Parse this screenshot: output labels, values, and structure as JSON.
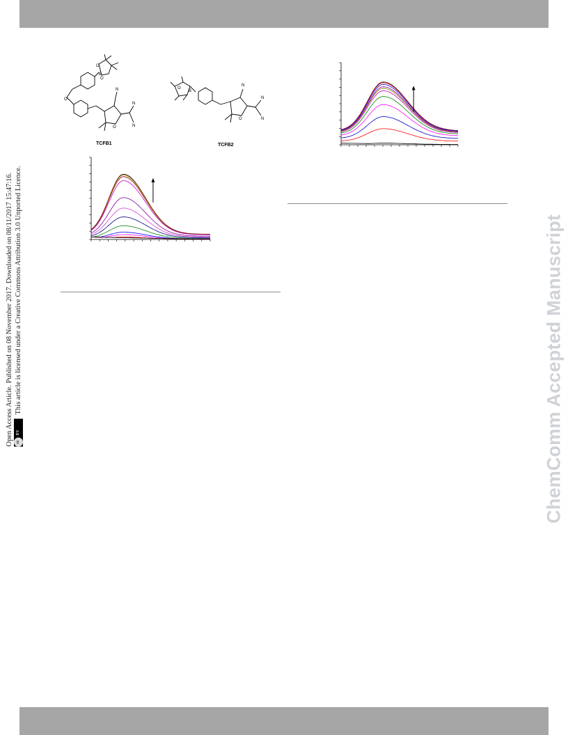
{
  "watermark": "ChemComm Accepted Manuscript",
  "access_note": {
    "line1": "Open Access Article. Published on 08 November 2017. Downloaded on 08/11/2017 15:47:16.",
    "line2": "This article is licensed under a Creative Commons Attribution 3.0 Unported Licence.",
    "cc_badge": "cc",
    "by_badge": "BY"
  },
  "structures": {
    "compound1": "TCFB1",
    "compound2": "TCFB2",
    "atoms": {
      "n": "N",
      "o": "O",
      "b": "B"
    }
  },
  "chart_data": [
    {
      "type": "line",
      "title": "",
      "xlabel": "",
      "ylabel": "",
      "xlim": [
        0,
        100
      ],
      "ylim": [
        0,
        100
      ],
      "legend": "none",
      "annotation": "upward arrow (increasing intensity)",
      "series": [
        {
          "color": "#000000",
          "peak": 81
        },
        {
          "color": "#c08000",
          "peak": 80
        },
        {
          "color": "#800000",
          "peak": 78
        },
        {
          "color": "#c000c0",
          "peak": 73
        },
        {
          "color": "#8000a0",
          "peak": 52
        },
        {
          "color": "#d040d0",
          "peak": 39
        },
        {
          "color": "#000080",
          "peak": 28
        },
        {
          "color": "#008000",
          "peak": 17
        },
        {
          "color": "#0000ff",
          "peak": 9
        },
        {
          "color": "#ff00ff",
          "peak": 6
        },
        {
          "color": "#ff0000",
          "peak": 3
        },
        {
          "color": "#000000",
          "peak": 2
        }
      ]
    },
    {
      "type": "line",
      "title": "",
      "xlabel": "",
      "ylabel": "",
      "xlim": [
        0,
        100
      ],
      "ylim": [
        0,
        100
      ],
      "legend": "none",
      "annotation": "upward arrow (increasing intensity)",
      "series": [
        {
          "color": "#000000",
          "peak": 78
        },
        {
          "color": "#ff0000",
          "peak": 77
        },
        {
          "color": "#0000ff",
          "peak": 75
        },
        {
          "color": "#800080",
          "peak": 72
        },
        {
          "color": "#808000",
          "peak": 70
        },
        {
          "color": "#c000c0",
          "peak": 67
        },
        {
          "color": "#008000",
          "peak": 60
        },
        {
          "color": "#ff00ff",
          "peak": 50
        },
        {
          "color": "#0000c0",
          "peak": 35
        },
        {
          "color": "#ff0000",
          "peak": 20
        },
        {
          "color": "#000000",
          "peak": 2
        }
      ]
    }
  ]
}
